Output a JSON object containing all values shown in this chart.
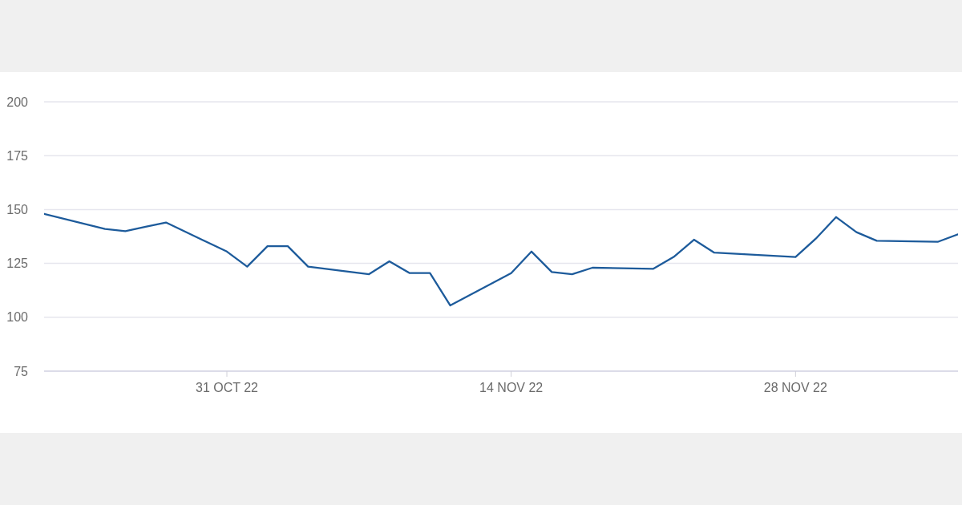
{
  "chart_data": {
    "type": "line",
    "x": [
      "2022-10-22",
      "2022-10-25",
      "2022-10-26",
      "2022-10-27",
      "2022-10-28",
      "2022-10-31",
      "2022-11-01",
      "2022-11-02",
      "2022-11-03",
      "2022-11-04",
      "2022-11-07",
      "2022-11-08",
      "2022-11-09",
      "2022-11-10",
      "2022-11-11",
      "2022-11-14",
      "2022-11-15",
      "2022-11-16",
      "2022-11-17",
      "2022-11-18",
      "2022-11-21",
      "2022-11-22",
      "2022-11-23",
      "2022-11-24",
      "2022-11-28",
      "2022-11-29",
      "2022-11-30",
      "2022-12-01",
      "2022-12-02",
      "2022-12-05",
      "2022-12-06"
    ],
    "series": [
      {
        "color": "#1d5b9b",
        "values": [
          148,
          141,
          140,
          142,
          144,
          130.5,
          123.5,
          133,
          133,
          123.5,
          120,
          126,
          120.5,
          120.5,
          105.5,
          120.5,
          130.5,
          121,
          120,
          123,
          122.5,
          128,
          136,
          130,
          128,
          136.5,
          146.5,
          139.5,
          135.5,
          135,
          138.5
        ]
      }
    ],
    "xlim": [
      "2022-10-22",
      "2022-12-06"
    ],
    "xticks": [
      {
        "value": "2022-10-31",
        "label": "31 OCT 22"
      },
      {
        "value": "2022-11-14",
        "label": "14 NOV 22"
      },
      {
        "value": "2022-11-28",
        "label": "28 NOV 22"
      }
    ],
    "ylim": [
      75,
      200
    ],
    "yticks": [
      75,
      100,
      125,
      150,
      175,
      200
    ],
    "grid": "y"
  }
}
